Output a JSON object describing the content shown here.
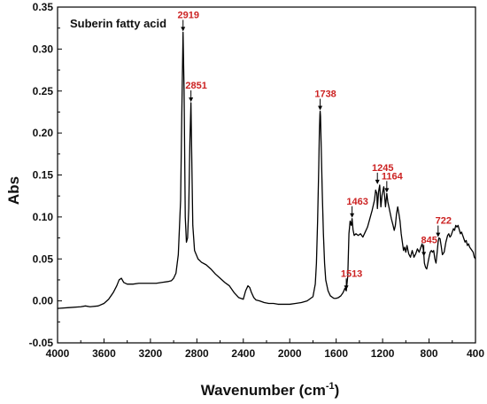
{
  "chart_data": {
    "type": "line",
    "title": "Suberin fatty acid",
    "xlabel_main": "Wavenumber (cm",
    "xlabel_sup": "-1",
    "xlabel_close": ")",
    "ylabel": "Abs",
    "xlim": [
      4000,
      400
    ],
    "ylim": [
      -0.05,
      0.35
    ],
    "x_reversed": true,
    "grid": false,
    "x_ticks": [
      4000,
      3600,
      3200,
      2800,
      2400,
      2000,
      1600,
      1200,
      800,
      400
    ],
    "y_ticks": [
      -0.05,
      0.0,
      0.05,
      0.1,
      0.15,
      0.2,
      0.25,
      0.3,
      0.35
    ],
    "x_tick_labels": [
      "4000",
      "3600",
      "3200",
      "2800",
      "2400",
      "2000",
      "1600",
      "1200",
      "800",
      "400"
    ],
    "y_tick_labels": [
      "-0.05",
      "0.00",
      "0.05",
      "0.10",
      "0.15",
      "0.20",
      "0.25",
      "0.30",
      "0.35"
    ],
    "series": [
      {
        "color": "#000000",
        "x": [
          4000,
          3900,
          3800,
          3760,
          3720,
          3650,
          3600,
          3560,
          3520,
          3490,
          3470,
          3450,
          3430,
          3400,
          3350,
          3300,
          3250,
          3200,
          3150,
          3100,
          3050,
          3020,
          3000,
          2980,
          2960,
          2940,
          2930,
          2919,
          2910,
          2900,
          2890,
          2880,
          2870,
          2860,
          2851,
          2845,
          2835,
          2820,
          2790,
          2760,
          2720,
          2680,
          2640,
          2600,
          2560,
          2520,
          2480,
          2440,
          2400,
          2380,
          2360,
          2345,
          2330,
          2310,
          2290,
          2260,
          2220,
          2180,
          2140,
          2100,
          2050,
          2000,
          1950,
          1900,
          1850,
          1800,
          1780,
          1770,
          1760,
          1750,
          1745,
          1740,
          1738,
          1735,
          1730,
          1720,
          1710,
          1700,
          1690,
          1670,
          1650,
          1620,
          1600,
          1580,
          1560,
          1540,
          1525,
          1513,
          1500,
          1490,
          1480,
          1470,
          1463,
          1455,
          1445,
          1430,
          1410,
          1390,
          1370,
          1350,
          1330,
          1310,
          1290,
          1270,
          1260,
          1250,
          1245,
          1235,
          1225,
          1215,
          1205,
          1190,
          1175,
          1164,
          1155,
          1140,
          1125,
          1110,
          1100,
          1090,
          1080,
          1070,
          1060,
          1050,
          1040,
          1030,
          1020,
          1010,
          1000,
          990,
          975,
          960,
          945,
          930,
          915,
          900,
          885,
          870,
          860,
          850,
          845,
          840,
          830,
          820,
          810,
          800,
          790,
          780,
          770,
          760,
          750,
          740,
          730,
          722,
          715,
          705,
          695,
          685,
          670,
          655,
          640,
          630,
          620,
          610,
          600,
          590,
          580,
          570,
          560,
          550,
          540,
          530,
          520,
          510,
          500,
          490,
          480,
          470,
          460,
          450,
          440,
          430,
          420,
          410,
          400
        ],
        "y": [
          -0.009,
          -0.008,
          -0.007,
          -0.006,
          -0.007,
          -0.006,
          -0.003,
          0.002,
          0.01,
          0.018,
          0.025,
          0.027,
          0.022,
          0.02,
          0.02,
          0.021,
          0.021,
          0.021,
          0.021,
          0.022,
          0.023,
          0.024,
          0.027,
          0.033,
          0.055,
          0.12,
          0.22,
          0.32,
          0.25,
          0.1,
          0.07,
          0.075,
          0.11,
          0.19,
          0.236,
          0.18,
          0.09,
          0.06,
          0.05,
          0.046,
          0.043,
          0.038,
          0.032,
          0.027,
          0.022,
          0.018,
          0.01,
          0.004,
          0.002,
          0.012,
          0.018,
          0.016,
          0.01,
          0.004,
          0.001,
          0.0,
          -0.002,
          -0.003,
          -0.003,
          -0.004,
          -0.004,
          -0.004,
          -0.003,
          -0.002,
          0.0,
          0.005,
          0.02,
          0.045,
          0.095,
          0.16,
          0.2,
          0.222,
          0.226,
          0.22,
          0.19,
          0.13,
          0.08,
          0.045,
          0.025,
          0.012,
          0.006,
          0.003,
          0.003,
          0.004,
          0.006,
          0.01,
          0.015,
          0.012,
          0.03,
          0.08,
          0.095,
          0.09,
          0.098,
          0.085,
          0.078,
          0.08,
          0.078,
          0.08,
          0.076,
          0.082,
          0.088,
          0.098,
          0.108,
          0.12,
          0.132,
          0.128,
          0.11,
          0.13,
          0.138,
          0.112,
          0.126,
          0.136,
          0.112,
          0.128,
          0.118,
          0.108,
          0.098,
          0.09,
          0.084,
          0.09,
          0.104,
          0.112,
          0.104,
          0.095,
          0.08,
          0.07,
          0.06,
          0.064,
          0.058,
          0.066,
          0.056,
          0.052,
          0.06,
          0.052,
          0.056,
          0.062,
          0.058,
          0.064,
          0.068,
          0.062,
          0.055,
          0.045,
          0.04,
          0.038,
          0.045,
          0.052,
          0.058,
          0.06,
          0.058,
          0.06,
          0.05,
          0.045,
          0.058,
          0.07,
          0.075,
          0.074,
          0.065,
          0.055,
          0.058,
          0.07,
          0.078,
          0.08,
          0.076,
          0.078,
          0.082,
          0.086,
          0.084,
          0.09,
          0.088,
          0.09,
          0.085,
          0.08,
          0.082,
          0.078,
          0.074,
          0.07,
          0.072,
          0.066,
          0.068,
          0.064,
          0.062,
          0.06,
          0.058,
          0.052,
          0.05
        ]
      }
    ],
    "annotations": [
      {
        "text": "2919",
        "x": 2919,
        "y": 0.32,
        "dir": "label-above"
      },
      {
        "text": "2851",
        "x": 2851,
        "y": 0.236,
        "dir": "label-above"
      },
      {
        "text": "1738",
        "x": 1738,
        "y": 0.226,
        "dir": "label-above"
      },
      {
        "text": "1463",
        "x": 1463,
        "y": 0.098,
        "dir": "label-above"
      },
      {
        "text": "1513",
        "x": 1513,
        "y": 0.012,
        "dir": "label-above"
      },
      {
        "text": "1245",
        "x": 1245,
        "y": 0.138,
        "dir": "label-above"
      },
      {
        "text": "1164",
        "x": 1164,
        "y": 0.128,
        "dir": "label-above"
      },
      {
        "text": "845",
        "x": 845,
        "y": 0.052,
        "dir": "label-above"
      },
      {
        "text": "722",
        "x": 722,
        "y": 0.075,
        "dir": "label-above"
      }
    ],
    "annotation_color": "#cc2222"
  }
}
